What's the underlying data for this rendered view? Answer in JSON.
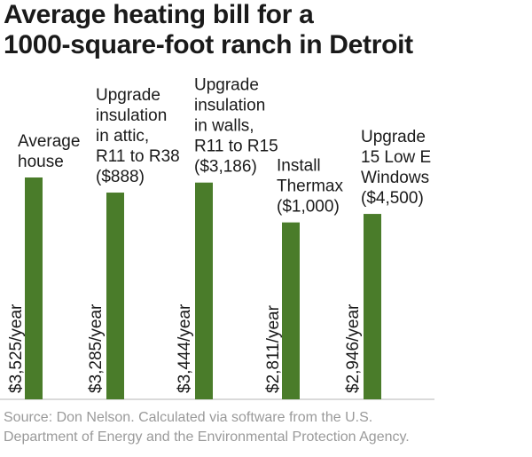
{
  "chart_data": {
    "type": "bar",
    "title_lines": [
      "Average heating bill for a",
      "1000-square-foot ranch in Detroit"
    ],
    "categories": [
      [
        "Average",
        "house"
      ],
      [
        "Upgrade",
        "insulation",
        "in attic,",
        "R11 to R38",
        "($888)"
      ],
      [
        "Upgrade",
        "insulation",
        "in walls,",
        "R11 to R15",
        "($3,186)"
      ],
      [
        "Install",
        "Thermax",
        "($1,000)"
      ],
      [
        "Upgrade",
        "15 Low E",
        "Windows",
        "($4,500)"
      ]
    ],
    "values": [
      3525,
      3285,
      3444,
      2811,
      2946
    ],
    "value_labels": [
      "$3,525/year",
      "$3,285/year",
      "$3,444/year",
      "$2,811/year",
      "$2,946/year"
    ],
    "ylim": [
      0,
      3525
    ],
    "xlabel": "",
    "ylabel": "",
    "grid": false,
    "bar_color": "#4a7c2a",
    "source_lines": [
      "Source: Don Nelson. Calculated via software from the U.S.",
      "Department of Energy and the Environmental Protection Agency."
    ]
  }
}
